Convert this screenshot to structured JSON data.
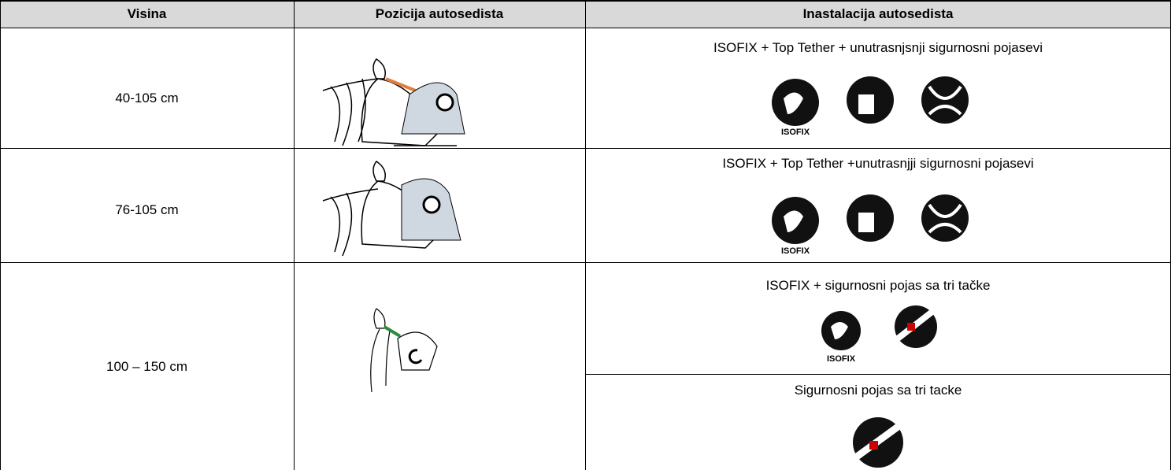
{
  "table": {
    "header": [
      "Visina",
      "Pozicija autosedista",
      "Inastalacija autosedista"
    ],
    "rows": [
      {
        "height": "40-105 cm",
        "installations": [
          {
            "text": "ISOFIX + Top Tether + unutrasnjsnji sigurnosni pojasevi",
            "icon_label": "ISOFIX"
          }
        ]
      },
      {
        "height": "76-105 cm",
        "installations": [
          {
            "text": "ISOFIX + Top Tether +unutrasnjji sigurnosni pojasevi",
            "icon_label": "ISOFIX"
          }
        ]
      },
      {
        "height": "100 – 150 cm",
        "installations": [
          {
            "text": "ISOFIX + sigurnosni pojas sa tri tačke",
            "icon_label": "ISOFIX"
          },
          {
            "text": "Sigurnosni pojas sa tri tacke"
          }
        ]
      }
    ]
  }
}
